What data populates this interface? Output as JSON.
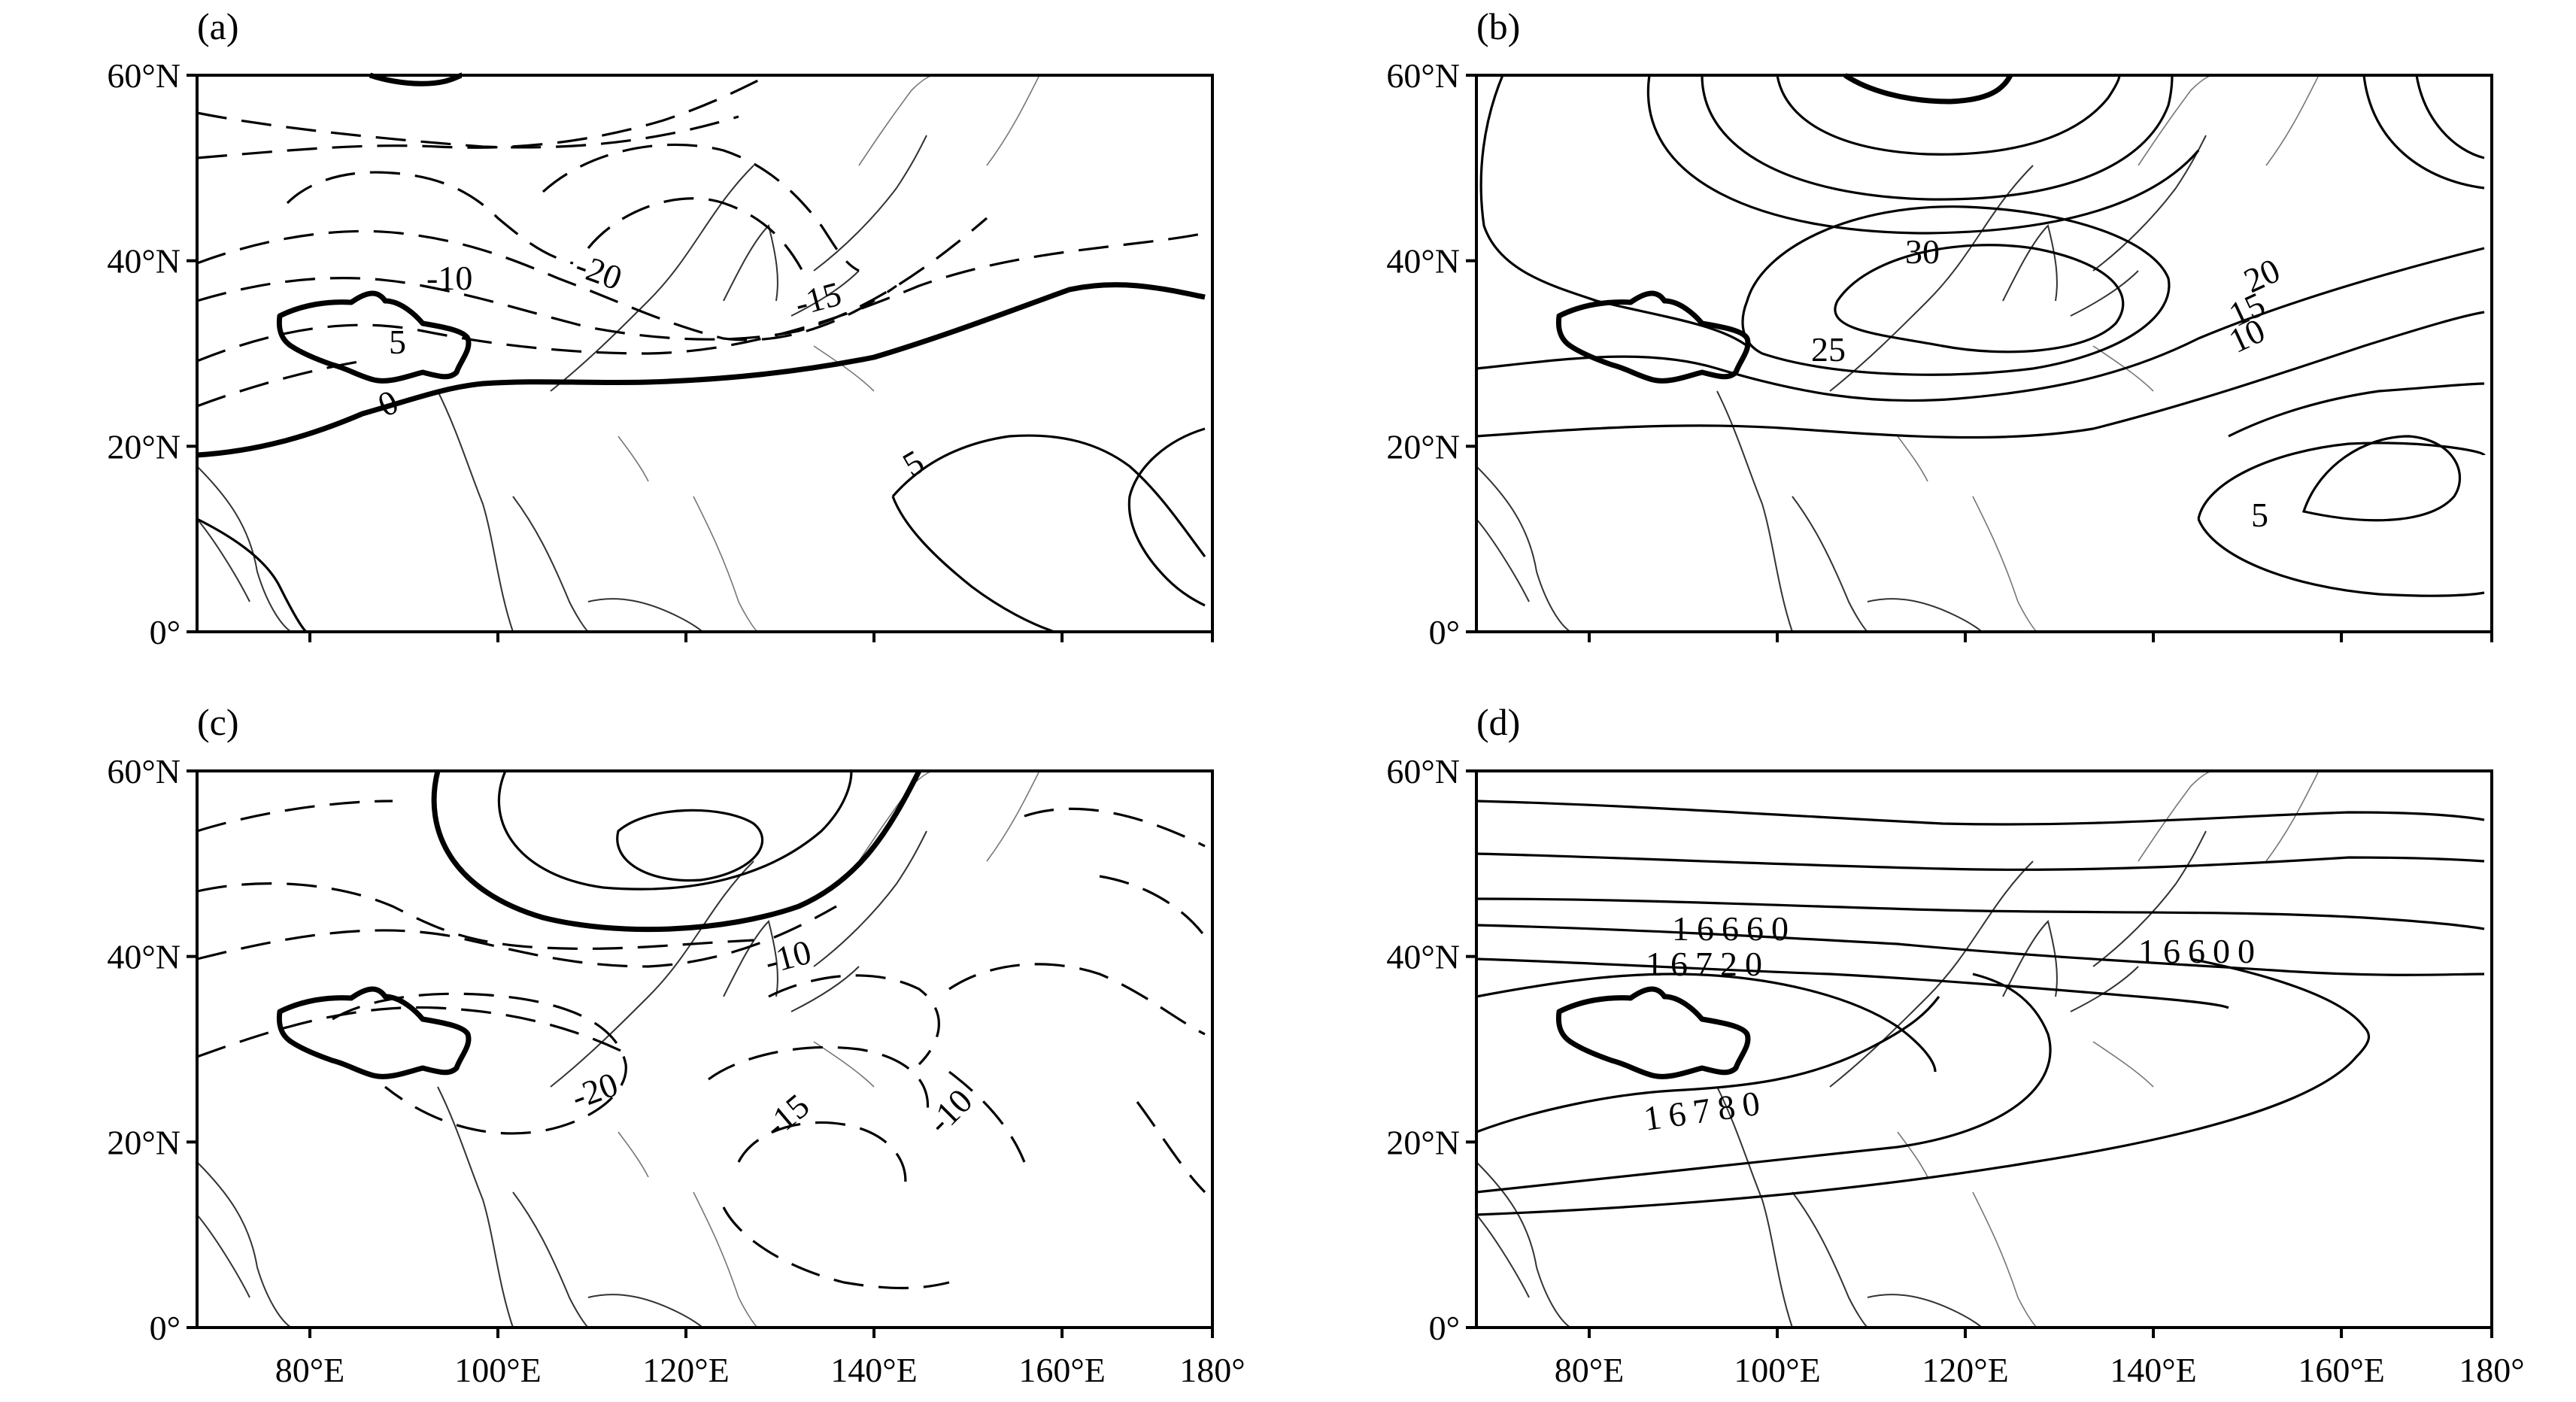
{
  "figure": {
    "panels": [
      {
        "letter": "(a)",
        "contour_labels": [
          "-10",
          "-20",
          "-15",
          "5",
          "0",
          "5"
        ]
      },
      {
        "letter": "(b)",
        "contour_labels": [
          "30",
          "25",
          "20",
          "15",
          "10",
          "5"
        ]
      },
      {
        "letter": "(c)",
        "contour_labels": [
          "-10",
          "-20",
          "-15",
          "-10"
        ]
      },
      {
        "letter": "(d)",
        "contour_labels": [
          "16660",
          "16720",
          "16600",
          "16780"
        ]
      }
    ],
    "lat_ticks": [
      "60°N",
      "40°N",
      "20°N",
      "0°"
    ],
    "lon_ticks": [
      "80°E",
      "100°E",
      "120°E",
      "140°E",
      "160°E",
      "180°"
    ],
    "colors": {
      "ink": "#000000",
      "coastline": "#333333",
      "background": "#ffffff"
    }
  }
}
